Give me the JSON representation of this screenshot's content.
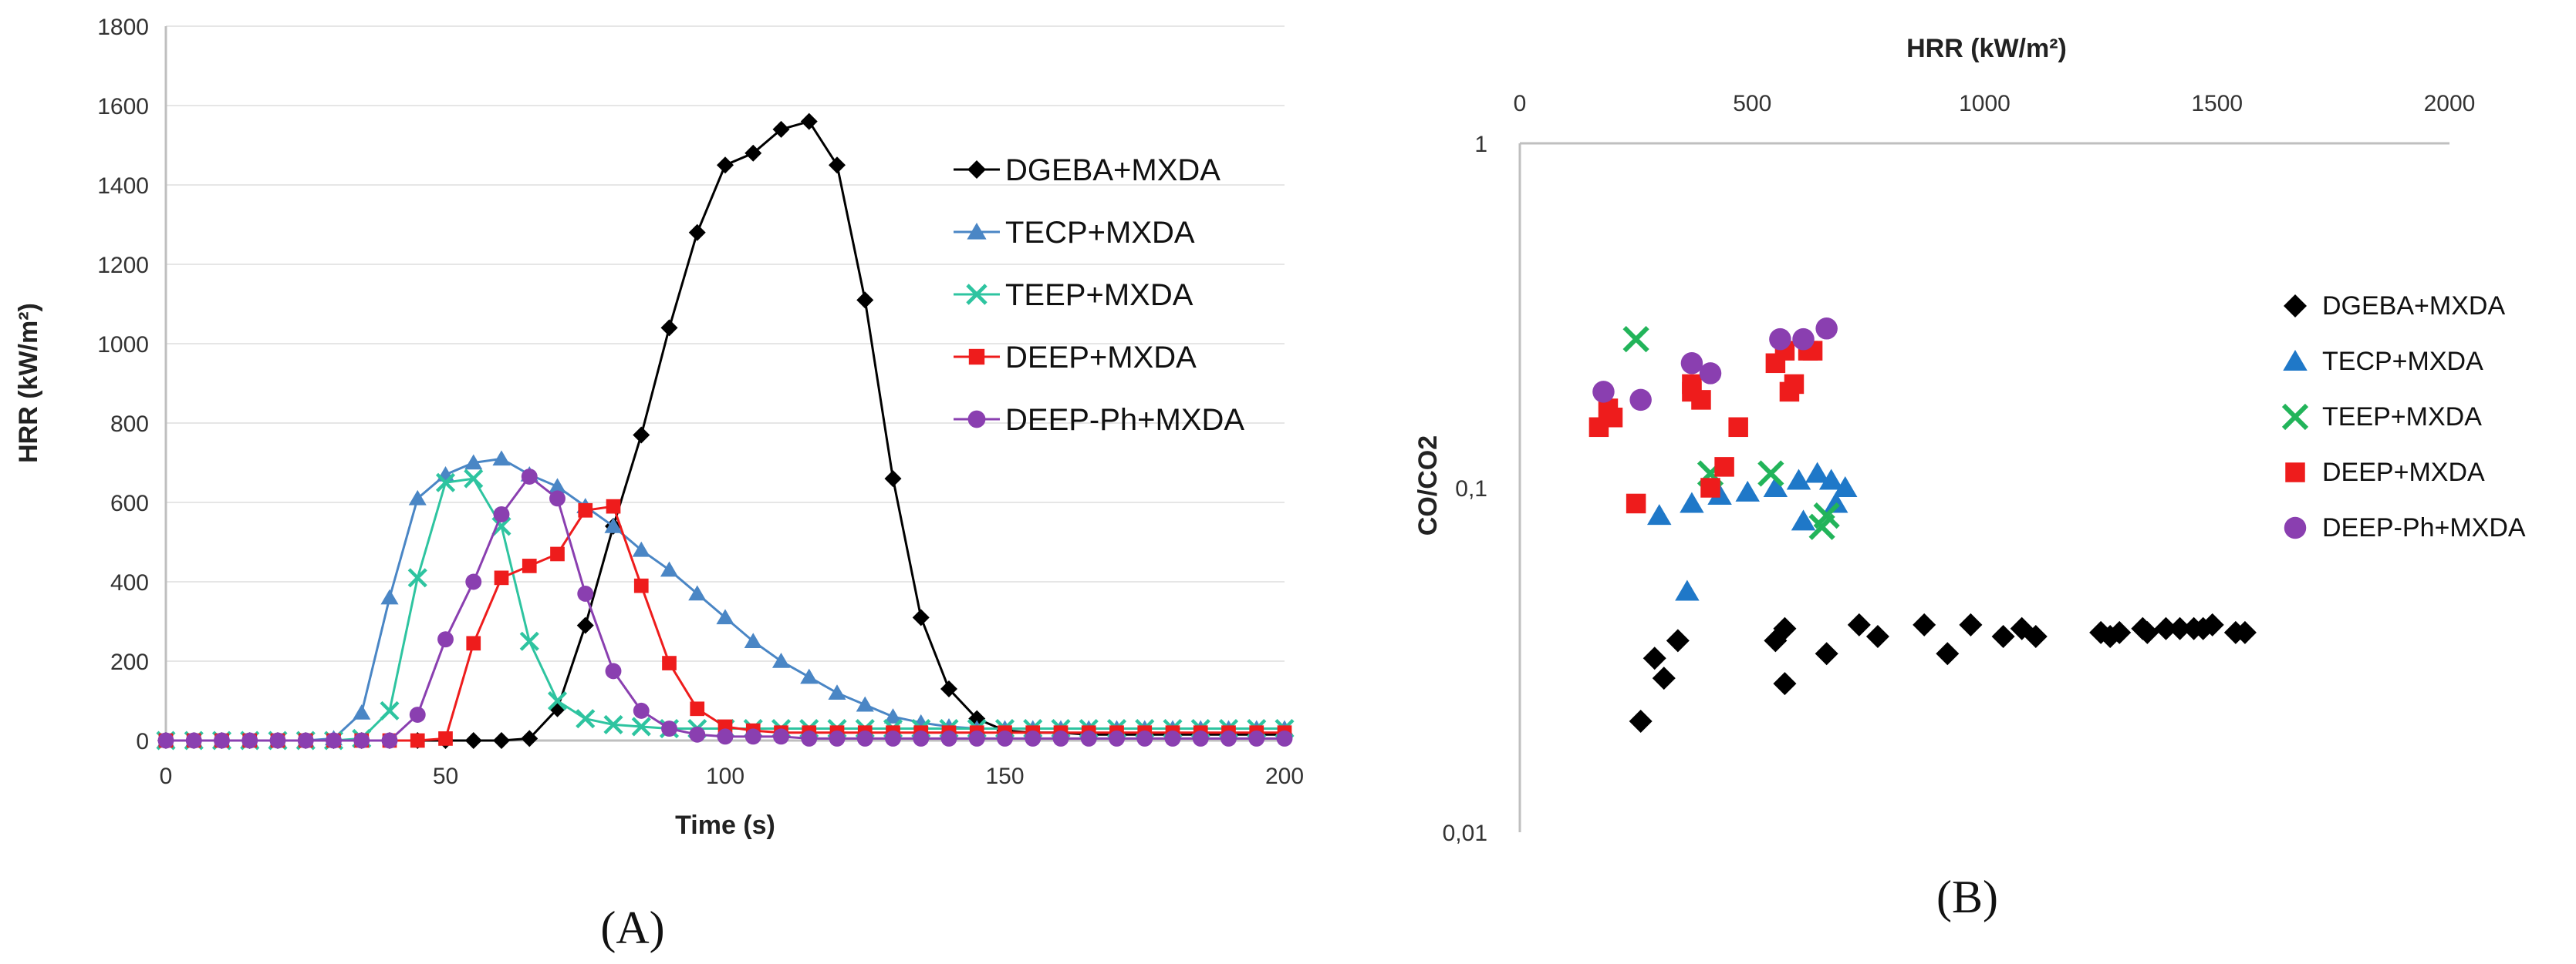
{
  "chart_data": [
    {
      "type": "line",
      "panel_label": "(A)",
      "xlabel": "Time (s)",
      "ylabel": "HRR (kW/m²)",
      "xlim": [
        0,
        200
      ],
      "ylim": [
        0,
        1800
      ],
      "xticks": [
        0,
        50,
        100,
        150,
        200
      ],
      "yticks": [
        0,
        200,
        400,
        600,
        800,
        1000,
        1200,
        1400,
        1600,
        1800
      ],
      "x": [
        0,
        5,
        10,
        15,
        20,
        25,
        30,
        35,
        40,
        45,
        50,
        55,
        60,
        65,
        70,
        75,
        80,
        85,
        90,
        95,
        100,
        105,
        110,
        115,
        120,
        125,
        130,
        135,
        140,
        145,
        150,
        155,
        160,
        165,
        170,
        175,
        180,
        185,
        190,
        195,
        200
      ],
      "series": [
        {
          "name": "DGEBA+MXDA",
          "color": "#000000",
          "marker": "diamond",
          "values": [
            0,
            0,
            0,
            0,
            0,
            0,
            0,
            0,
            0,
            0,
            0,
            0,
            0,
            5,
            80,
            290,
            540,
            770,
            1040,
            1280,
            1450,
            1480,
            1540,
            1560,
            1450,
            1110,
            660,
            310,
            130,
            55,
            25,
            20,
            20,
            15,
            15,
            15,
            15,
            15,
            15,
            15,
            15
          ]
        },
        {
          "name": "TECP+MXDA",
          "color": "#4a86c5",
          "marker": "triangle",
          "values": [
            0,
            0,
            0,
            0,
            0,
            0,
            5,
            70,
            360,
            610,
            670,
            700,
            710,
            670,
            640,
            590,
            540,
            480,
            430,
            370,
            310,
            250,
            200,
            160,
            120,
            90,
            60,
            45,
            35,
            30,
            30,
            30,
            30,
            30,
            30,
            30,
            30,
            30,
            30,
            30,
            30
          ]
        },
        {
          "name": "TEEP+MXDA",
          "color": "#2ec4a0",
          "marker": "x",
          "values": [
            0,
            0,
            0,
            0,
            0,
            0,
            0,
            5,
            75,
            410,
            650,
            660,
            540,
            250,
            100,
            55,
            40,
            35,
            30,
            30,
            30,
            30,
            30,
            30,
            30,
            30,
            30,
            30,
            30,
            30,
            30,
            30,
            30,
            30,
            30,
            30,
            30,
            30,
            30,
            30,
            30
          ]
        },
        {
          "name": "DEEP+MXDA",
          "color": "#ee1c1c",
          "marker": "square",
          "values": [
            0,
            0,
            0,
            0,
            0,
            0,
            0,
            0,
            0,
            0,
            5,
            245,
            410,
            440,
            470,
            580,
            590,
            390,
            195,
            80,
            35,
            25,
            20,
            20,
            20,
            20,
            20,
            20,
            20,
            20,
            20,
            20,
            20,
            20,
            20,
            20,
            20,
            20,
            20,
            20,
            20
          ]
        },
        {
          "name": "DEEP-Ph+MXDA",
          "color": "#8a3fb0",
          "marker": "circle",
          "values": [
            0,
            0,
            0,
            0,
            0,
            0,
            0,
            0,
            0,
            65,
            255,
            400,
            570,
            665,
            610,
            370,
            175,
            75,
            30,
            15,
            10,
            10,
            10,
            5,
            5,
            5,
            5,
            5,
            5,
            5,
            5,
            5,
            5,
            5,
            5,
            5,
            5,
            5,
            5,
            5,
            5
          ]
        }
      ]
    },
    {
      "type": "scatter",
      "panel_label": "(B)",
      "xlabel": "HRR (kW/m²)",
      "ylabel": "CO/CO2",
      "xlim": [
        0,
        2000
      ],
      "ylim": [
        0.01,
        1
      ],
      "yscale": "log",
      "xticks": [
        0,
        500,
        1000,
        1500,
        2000
      ],
      "ytick_labels": [
        "1",
        "0,1",
        "0,01"
      ],
      "ytick_values": [
        1,
        0.1,
        0.01
      ],
      "series": [
        {
          "name": "DGEBA+MXDA",
          "color": "#000000",
          "marker": "diamond",
          "points": [
            [
              260,
              0.021
            ],
            [
              290,
              0.032
            ],
            [
              310,
              0.028
            ],
            [
              340,
              0.036
            ],
            [
              550,
              0.036
            ],
            [
              570,
              0.039
            ],
            [
              570,
              0.027
            ],
            [
              660,
              0.033
            ],
            [
              730,
              0.04
            ],
            [
              770,
              0.037
            ],
            [
              870,
              0.04
            ],
            [
              920,
              0.033
            ],
            [
              970,
              0.04
            ],
            [
              1040,
              0.037
            ],
            [
              1080,
              0.039
            ],
            [
              1110,
              0.037
            ],
            [
              1250,
              0.038
            ],
            [
              1270,
              0.037
            ],
            [
              1290,
              0.038
            ],
            [
              1340,
              0.039
            ],
            [
              1350,
              0.038
            ],
            [
              1390,
              0.039
            ],
            [
              1420,
              0.039
            ],
            [
              1450,
              0.039
            ],
            [
              1470,
              0.039
            ],
            [
              1490,
              0.04
            ],
            [
              1540,
              0.038
            ],
            [
              1560,
              0.038
            ]
          ]
        },
        {
          "name": "TECP+MXDA",
          "color": "#1f78c8",
          "marker": "triangle",
          "points": [
            [
              300,
              0.083
            ],
            [
              360,
              0.05
            ],
            [
              370,
              0.09
            ],
            [
              430,
              0.095
            ],
            [
              490,
              0.097
            ],
            [
              550,
              0.1
            ],
            [
              600,
              0.105
            ],
            [
              610,
              0.08
            ],
            [
              640,
              0.11
            ],
            [
              670,
              0.105
            ],
            [
              680,
              0.09
            ],
            [
              700,
              0.1
            ]
          ]
        },
        {
          "name": "TEEP+MXDA",
          "color": "#22b45a",
          "marker": "x",
          "points": [
            [
              250,
              0.27
            ],
            [
              410,
              0.11
            ],
            [
              540,
              0.11
            ],
            [
              650,
              0.077
            ],
            [
              660,
              0.083
            ]
          ]
        },
        {
          "name": "DEEP+MXDA",
          "color": "#ee1c1c",
          "marker": "square",
          "points": [
            [
              170,
              0.15
            ],
            [
              190,
              0.17
            ],
            [
              200,
              0.16
            ],
            [
              250,
              0.09
            ],
            [
              370,
              0.19
            ],
            [
              370,
              0.2
            ],
            [
              390,
              0.18
            ],
            [
              410,
              0.1
            ],
            [
              440,
              0.115
            ],
            [
              470,
              0.15
            ],
            [
              550,
              0.23
            ],
            [
              570,
              0.25
            ],
            [
              580,
              0.19
            ],
            [
              590,
              0.2
            ],
            [
              620,
              0.25
            ],
            [
              630,
              0.25
            ]
          ]
        },
        {
          "name": "DEEP-Ph+MXDA",
          "color": "#8a3fb0",
          "marker": "circle",
          "points": [
            [
              180,
              0.19
            ],
            [
              260,
              0.18
            ],
            [
              370,
              0.23
            ],
            [
              410,
              0.215
            ],
            [
              560,
              0.27
            ],
            [
              610,
              0.27
            ],
            [
              660,
              0.29
            ]
          ]
        }
      ]
    }
  ]
}
